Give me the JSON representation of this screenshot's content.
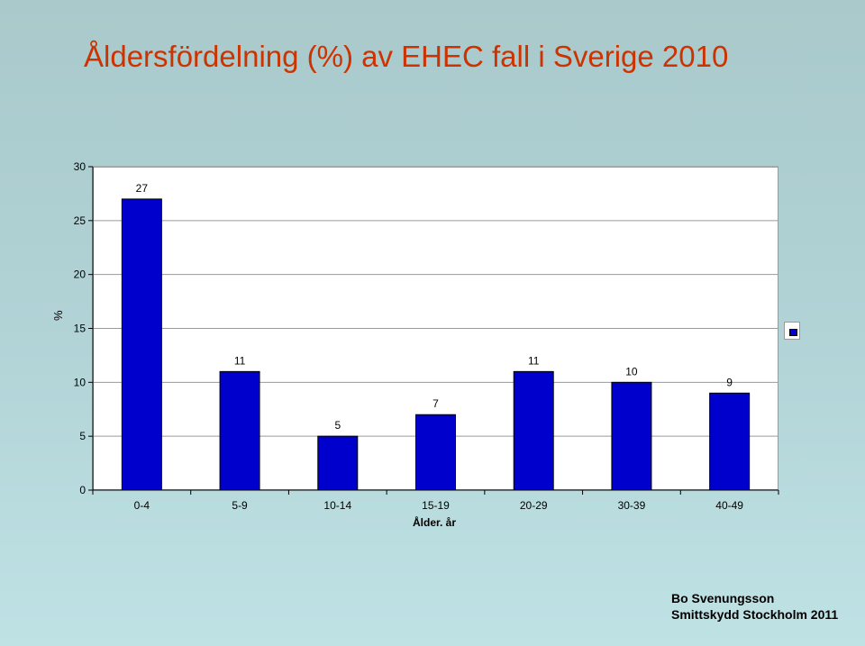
{
  "chart_data": {
    "type": "bar",
    "title": "Åldersfördelning (%) av EHEC fall i Sverige 2010",
    "xlabel": "Ålder. år",
    "ylabel": "%",
    "categories": [
      "0-4",
      "5-9",
      "10-14",
      "15-19",
      "20-29",
      "30-39",
      "40-49"
    ],
    "values": [
      27,
      11,
      5,
      7,
      11,
      10,
      9
    ],
    "data_labels": [
      "27",
      "11",
      "5",
      "7",
      "11",
      "10",
      "9"
    ],
    "ylim": [
      0,
      30
    ],
    "yticks": [
      0,
      5,
      10,
      15,
      20,
      25,
      30
    ],
    "grid": true,
    "legend_position": "right",
    "bar_color": "#0000cc"
  },
  "credit": {
    "line1": "Bo Svenungsson",
    "line2": "Smittskydd Stockholm 2011"
  }
}
